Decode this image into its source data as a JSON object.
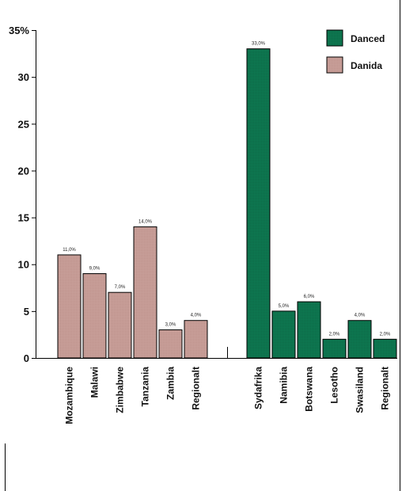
{
  "chart_data": {
    "type": "bar",
    "ylim": [
      0,
      35
    ],
    "y_ticks": [
      "0",
      "5",
      "10",
      "15",
      "20",
      "25",
      "30",
      "35%"
    ],
    "grid": false,
    "legend_position": "top-right",
    "series": [
      {
        "name": "Danida",
        "color": "#c9a09a",
        "categories": [
          "Mozambique",
          "Malawi",
          "Zimbabwe",
          "Tanzania",
          "Zambia",
          "Regionalt"
        ],
        "values": [
          11,
          9,
          7,
          14,
          3,
          4
        ],
        "labels": [
          "11,0%",
          "9,0%",
          "7,0%",
          "14,0%",
          "3,0%",
          "4,0%"
        ]
      },
      {
        "name": "Danced",
        "color": "#0e7a52",
        "categories": [
          "Sydafrika",
          "Namibia",
          "Botswana",
          "Lesotho",
          "Swasiland",
          "Regionalt"
        ],
        "values": [
          33,
          5,
          6,
          2,
          4,
          2
        ],
        "labels": [
          "33,0%",
          "5,0%",
          "6,0%",
          "2,0%",
          "4,0%",
          "2,0%"
        ]
      }
    ]
  }
}
